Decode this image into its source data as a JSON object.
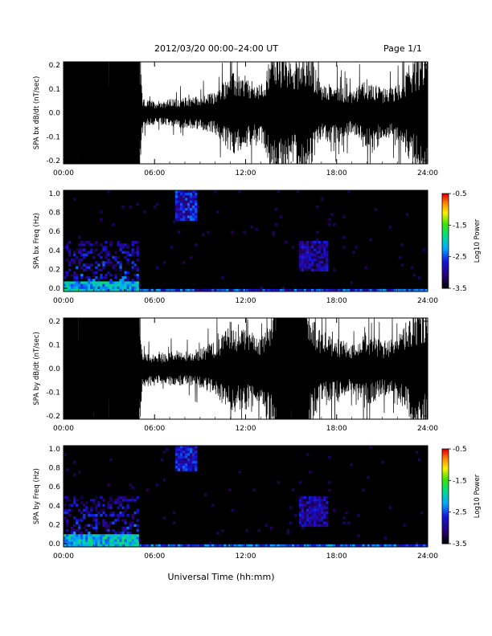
{
  "header": {
    "title": "2012/03/20  00:00–24:00 UT",
    "page": "Page 1/1"
  },
  "xaxis": {
    "label": "Universal Time (hh:mm)",
    "ticks": [
      "00:00",
      "06:00",
      "12:00",
      "18:00",
      "24:00"
    ],
    "range_hours": [
      0,
      24
    ]
  },
  "colorbar": {
    "label": "Log10 Power",
    "ticks": [
      "-0.5",
      "-1.5",
      "-2.5",
      "-3.5"
    ],
    "range": [
      -3.5,
      -0.5
    ]
  },
  "chart_data": [
    {
      "type": "line",
      "ylabel": "SPA bx dB/dt (nT/sec)",
      "ylim": [
        -0.2,
        0.2
      ],
      "yticks": [
        "0.2",
        "0.1",
        "0.0",
        "-0.1",
        "-0.2"
      ],
      "x_unit": "UT hours",
      "envelope": {
        "x": [
          0,
          1,
          2,
          3,
          4,
          5,
          5.2,
          6,
          7,
          8,
          9,
          10,
          11,
          12,
          13,
          14,
          15,
          16,
          17,
          18,
          19,
          20,
          21,
          22,
          23,
          24
        ],
        "amplitude": [
          0.2,
          0.2,
          0.2,
          0.2,
          0.2,
          0.2,
          0.04,
          0.035,
          0.04,
          0.045,
          0.05,
          0.06,
          0.12,
          0.1,
          0.08,
          0.2,
          0.15,
          0.2,
          0.08,
          0.09,
          0.06,
          0.1,
          0.07,
          0.08,
          0.15,
          0.2
        ]
      }
    },
    {
      "type": "heatmap",
      "ylabel": "SPA bx Freq (Hz)",
      "ylim": [
        0,
        1.0
      ],
      "yticks": [
        "1.0",
        "0.8",
        "0.6",
        "0.4",
        "0.2",
        "0.0"
      ],
      "value_range": [
        -3.5,
        -0.5
      ],
      "features": [
        {
          "t": [
            7.3,
            8.8
          ],
          "f": [
            0.7,
            1.0
          ],
          "log_power": -2.4
        },
        {
          "t": [
            15.5,
            17.5
          ],
          "f": [
            0.2,
            0.5
          ],
          "log_power": -2.6
        },
        {
          "t": [
            0,
            5
          ],
          "f": [
            0,
            0.1
          ],
          "log_power": -1.8
        },
        {
          "t": [
            0,
            24
          ],
          "f": [
            0,
            0.03
          ],
          "log_power": -2.2
        }
      ]
    },
    {
      "type": "line",
      "ylabel": "SPA by dB/dt (nT/sec)",
      "ylim": [
        -0.2,
        0.2
      ],
      "yticks": [
        "0.2",
        "0.1",
        "0.0",
        "-0.1",
        "-0.2"
      ],
      "x_unit": "UT hours",
      "envelope": {
        "x": [
          0,
          1,
          2,
          3,
          4,
          5,
          5.2,
          6,
          7,
          8,
          9,
          10,
          11,
          12,
          13,
          14,
          15,
          16,
          17,
          18,
          19,
          20,
          21,
          22,
          23,
          24
        ],
        "amplitude": [
          0.2,
          0.2,
          0.2,
          0.2,
          0.2,
          0.2,
          0.05,
          0.04,
          0.05,
          0.05,
          0.06,
          0.08,
          0.14,
          0.12,
          0.1,
          0.2,
          0.2,
          0.2,
          0.1,
          0.09,
          0.07,
          0.11,
          0.08,
          0.09,
          0.17,
          0.2
        ]
      }
    },
    {
      "type": "heatmap",
      "ylabel": "SPA by Freq (Hz)",
      "ylim": [
        0,
        1.0
      ],
      "yticks": [
        "1.0",
        "0.8",
        "0.6",
        "0.4",
        "0.2",
        "0.0"
      ],
      "value_range": [
        -3.5,
        -0.5
      ],
      "features": [
        {
          "t": [
            7.3,
            8.8
          ],
          "f": [
            0.75,
            1.0
          ],
          "log_power": -2.4
        },
        {
          "t": [
            15.5,
            17.5
          ],
          "f": [
            0.2,
            0.5
          ],
          "log_power": -2.6
        },
        {
          "t": [
            0,
            5
          ],
          "f": [
            0,
            0.12
          ],
          "log_power": -1.7
        },
        {
          "t": [
            0,
            24
          ],
          "f": [
            0,
            0.03
          ],
          "log_power": -2.1
        }
      ]
    }
  ]
}
